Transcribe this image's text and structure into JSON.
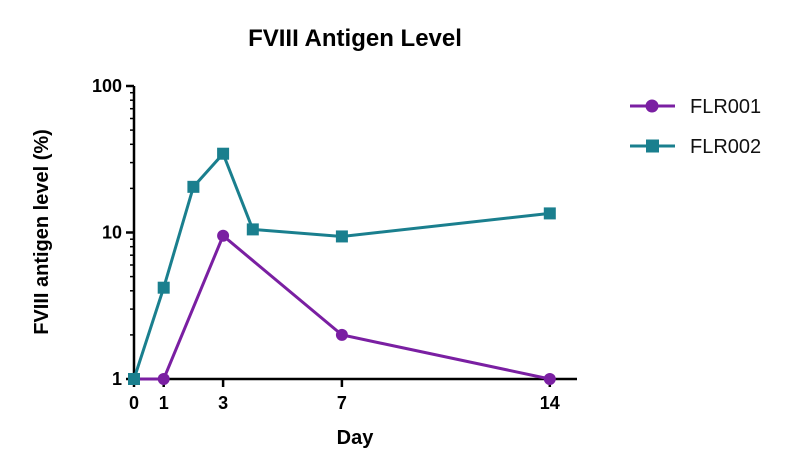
{
  "chart_data": {
    "type": "line",
    "title": "FVIII Antigen Level",
    "xlabel": "Day",
    "ylabel": "FVIII antigen level (%)",
    "yscale": "log",
    "ylim": [
      1,
      100
    ],
    "xlim": [
      0,
      14.5
    ],
    "x_ticks": [
      0,
      1,
      3,
      7,
      14
    ],
    "y_ticks": [
      1,
      10,
      100
    ],
    "grid": false,
    "legend_position": "top-right",
    "series": [
      {
        "name": "FLR001",
        "color": "#7a1fa2",
        "marker": "circle",
        "x": [
          0,
          1,
          3,
          7,
          14
        ],
        "y": [
          1,
          1,
          9.5,
          2,
          1
        ]
      },
      {
        "name": "FLR002",
        "color": "#1a7f8e",
        "marker": "square",
        "x": [
          0,
          1,
          2,
          3,
          4,
          7,
          14
        ],
        "y": [
          1,
          4.2,
          20.5,
          34.5,
          10.5,
          9.4,
          13.5
        ]
      }
    ]
  }
}
